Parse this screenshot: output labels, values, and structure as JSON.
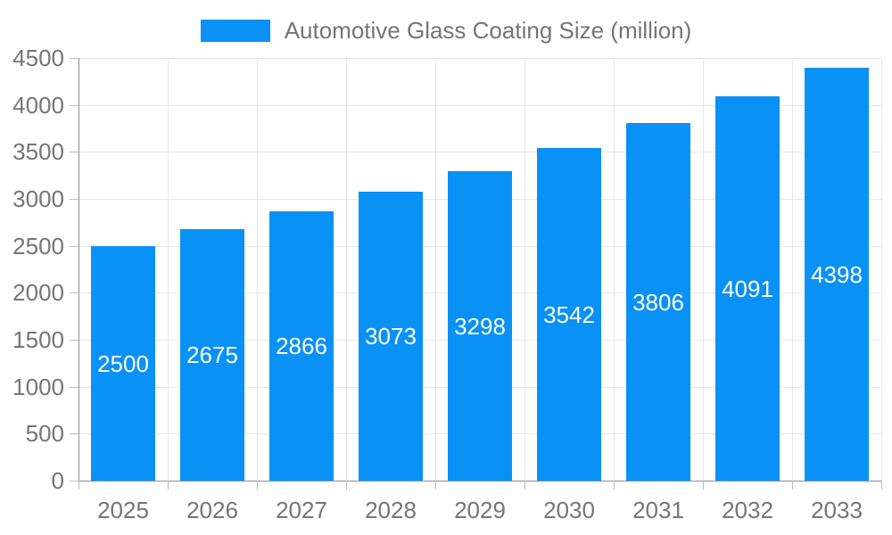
{
  "legend": {
    "label": "Automotive Glass Coating Size (million)"
  },
  "colors": {
    "bar": "#0a91f5",
    "bar_label": "#ffffff",
    "axis_text": "#757575",
    "legend_text": "#757575",
    "grid_line": "#e6e6e6",
    "tick_mark": "#bdbdbd",
    "axis_line": "#8f8f8f",
    "background": "#ffffff"
  },
  "chart_data": {
    "type": "bar",
    "title": "Automotive Glass Coating Size (million)",
    "categories": [
      "2025",
      "2026",
      "2027",
      "2028",
      "2029",
      "2030",
      "2031",
      "2032",
      "2033"
    ],
    "values": [
      2500,
      2675,
      2866,
      3073,
      3298,
      3542,
      3806,
      4091,
      4398
    ],
    "bar_value_labels": [
      "2500",
      "2675",
      "2866",
      "3073",
      "3298",
      "3542",
      "3806",
      "4091",
      "4398"
    ],
    "xlabel": "",
    "ylabel": "",
    "ylim": [
      0,
      4500
    ],
    "yticks": [
      0,
      500,
      1000,
      1500,
      2000,
      2500,
      3000,
      3500,
      4000,
      4500
    ],
    "grid": true,
    "legend_position": "top",
    "value_label_position": "center-of-bar"
  }
}
